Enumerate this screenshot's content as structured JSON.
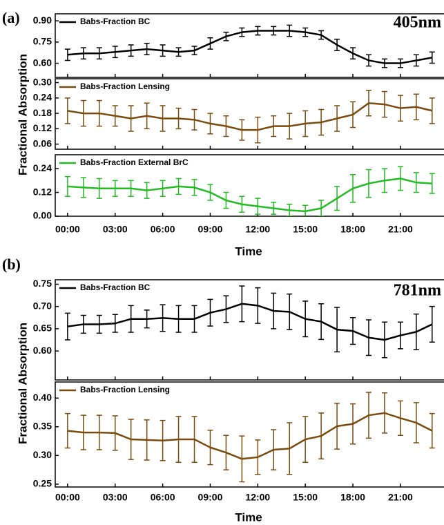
{
  "chart_data": [
    {
      "type": "line",
      "label": "(a)",
      "annotation": "405nm",
      "ylabel": "Fractional Absorption",
      "xlabel": "Time",
      "x": [
        0,
        1,
        2,
        3,
        4,
        5,
        6,
        7,
        8,
        9,
        10,
        11,
        12,
        13,
        14,
        15,
        16,
        17,
        18,
        19,
        20,
        21,
        22,
        23
      ],
      "xlim": [
        -0.78,
        23.75
      ],
      "xticks": [
        {
          "value": 0,
          "label": "00:00"
        },
        {
          "value": 3,
          "label": "03:00"
        },
        {
          "value": 6,
          "label": "06:00"
        },
        {
          "value": 9,
          "label": "09:00"
        },
        {
          "value": 12,
          "label": "12:00"
        },
        {
          "value": 15,
          "label": "15:00"
        },
        {
          "value": 18,
          "label": "18:00"
        },
        {
          "value": 21,
          "label": "21:00"
        }
      ],
      "panels": [
        {
          "ylim": [
            0.5,
            0.95
          ],
          "yticks": [
            {
              "value": 0.6,
              "label": "0.60"
            },
            {
              "value": 0.75,
              "label": "0.75"
            },
            {
              "value": 0.9,
              "label": "0.90"
            }
          ],
          "series": [
            {
              "name": "Babs-Fraction BC",
              "color": "#000000",
              "values": [
                0.66,
                0.67,
                0.67,
                0.68,
                0.69,
                0.7,
                0.69,
                0.68,
                0.69,
                0.74,
                0.79,
                0.82,
                0.83,
                0.83,
                0.83,
                0.82,
                0.8,
                0.73,
                0.67,
                0.62,
                0.6,
                0.6,
                0.62,
                0.64
              ],
              "errors": [
                0.04,
                0.04,
                0.04,
                0.04,
                0.04,
                0.04,
                0.04,
                0.03,
                0.03,
                0.04,
                0.03,
                0.03,
                0.03,
                0.03,
                0.04,
                0.03,
                0.03,
                0.04,
                0.04,
                0.04,
                0.03,
                0.03,
                0.04,
                0.04
              ]
            }
          ]
        },
        {
          "ylim": [
            0.04,
            0.315
          ],
          "yticks": [
            {
              "value": 0.06,
              "label": "0.06"
            },
            {
              "value": 0.12,
              "label": "0.12"
            },
            {
              "value": 0.18,
              "label": "0.18"
            },
            {
              "value": 0.24,
              "label": "0.24"
            },
            {
              "value": 0.3,
              "label": "0.30"
            }
          ],
          "series": [
            {
              "name": "Babs-Fraction Lensing",
              "color": "#7a4b0e",
              "values": [
                0.19,
                0.18,
                0.18,
                0.17,
                0.16,
                0.17,
                0.16,
                0.16,
                0.155,
                0.14,
                0.13,
                0.115,
                0.115,
                0.13,
                0.13,
                0.14,
                0.145,
                0.16,
                0.175,
                0.22,
                0.215,
                0.2,
                0.205,
                0.19
              ],
              "errors": [
                0.05,
                0.05,
                0.05,
                0.04,
                0.05,
                0.05,
                0.05,
                0.04,
                0.04,
                0.04,
                0.04,
                0.04,
                0.05,
                0.04,
                0.05,
                0.05,
                0.05,
                0.05,
                0.05,
                0.05,
                0.05,
                0.05,
                0.05,
                0.05
              ]
            }
          ]
        },
        {
          "ylim": [
            0,
            0.31
          ],
          "yticks": [
            {
              "value": 0,
              "label": "0.00"
            },
            {
              "value": 0.12,
              "label": "0.12"
            },
            {
              "value": 0.24,
              "label": "0.24"
            }
          ],
          "series": [
            {
              "name": "Babs-Fraction External BrC",
              "color": "#22bb22",
              "values": [
                0.15,
                0.145,
                0.14,
                0.14,
                0.14,
                0.13,
                0.14,
                0.15,
                0.145,
                0.12,
                0.08,
                0.06,
                0.05,
                0.04,
                0.03,
                0.025,
                0.04,
                0.09,
                0.14,
                0.165,
                0.18,
                0.19,
                0.17,
                0.165
              ],
              "errors": [
                0.05,
                0.05,
                0.05,
                0.04,
                0.04,
                0.04,
                0.04,
                0.04,
                0.04,
                0.04,
                0.04,
                0.04,
                0.04,
                0.03,
                0.03,
                0.03,
                0.04,
                0.06,
                0.07,
                0.07,
                0.06,
                0.06,
                0.05,
                0.05
              ]
            }
          ]
        }
      ]
    },
    {
      "type": "line",
      "label": "(b)",
      "annotation": "781nm",
      "ylabel": "Fractional Absorption",
      "xlabel": "Time",
      "x": [
        0,
        1,
        2,
        3,
        4,
        5,
        6,
        7,
        8,
        9,
        10,
        11,
        12,
        13,
        14,
        15,
        16,
        17,
        18,
        19,
        20,
        21,
        22,
        23
      ],
      "xlim": [
        -0.78,
        23.75
      ],
      "xticks": [
        {
          "value": 0,
          "label": "00:00"
        },
        {
          "value": 3,
          "label": "03:00"
        },
        {
          "value": 6,
          "label": "06:00"
        },
        {
          "value": 9,
          "label": "09:00"
        },
        {
          "value": 12,
          "label": "12:00"
        },
        {
          "value": 15,
          "label": "15:00"
        },
        {
          "value": 18,
          "label": "18:00"
        },
        {
          "value": 21,
          "label": "21:00"
        }
      ],
      "panels": [
        {
          "ylim": [
            0.535,
            0.76
          ],
          "yticks": [
            {
              "value": 0.6,
              "label": "0.60"
            },
            {
              "value": 0.65,
              "label": "0.65"
            },
            {
              "value": 0.7,
              "label": "0.70"
            },
            {
              "value": 0.75,
              "label": "0.75"
            }
          ],
          "series": [
            {
              "name": "Babs-Fraction BC",
              "color": "#000000",
              "values": [
                0.655,
                0.66,
                0.66,
                0.662,
                0.672,
                0.672,
                0.674,
                0.672,
                0.672,
                0.686,
                0.694,
                0.706,
                0.702,
                0.69,
                0.688,
                0.672,
                0.666,
                0.648,
                0.645,
                0.63,
                0.625,
                0.635,
                0.643,
                0.66
              ],
              "errors": [
                0.03,
                0.02,
                0.02,
                0.02,
                0.03,
                0.02,
                0.03,
                0.03,
                0.03,
                0.03,
                0.03,
                0.04,
                0.04,
                0.04,
                0.04,
                0.04,
                0.04,
                0.05,
                0.03,
                0.04,
                0.04,
                0.03,
                0.04,
                0.04
              ]
            }
          ]
        },
        {
          "ylim": [
            0.245,
            0.428
          ],
          "yticks": [
            {
              "value": 0.25,
              "label": "0.25"
            },
            {
              "value": 0.3,
              "label": "0.30"
            },
            {
              "value": 0.35,
              "label": "0.35"
            },
            {
              "value": 0.4,
              "label": "0.40"
            }
          ],
          "series": [
            {
              "name": "Babs-Fraction Lensing",
              "color": "#7a4b0e",
              "values": [
                0.343,
                0.34,
                0.34,
                0.339,
                0.328,
                0.327,
                0.326,
                0.328,
                0.328,
                0.314,
                0.305,
                0.294,
                0.297,
                0.31,
                0.312,
                0.328,
                0.334,
                0.351,
                0.355,
                0.37,
                0.374,
                0.365,
                0.357,
                0.343
              ],
              "errors": [
                0.03,
                0.03,
                0.03,
                0.03,
                0.035,
                0.035,
                0.035,
                0.04,
                0.04,
                0.03,
                0.03,
                0.04,
                0.03,
                0.035,
                0.045,
                0.04,
                0.04,
                0.04,
                0.035,
                0.04,
                0.035,
                0.03,
                0.035,
                0.03
              ]
            }
          ]
        }
      ]
    }
  ]
}
